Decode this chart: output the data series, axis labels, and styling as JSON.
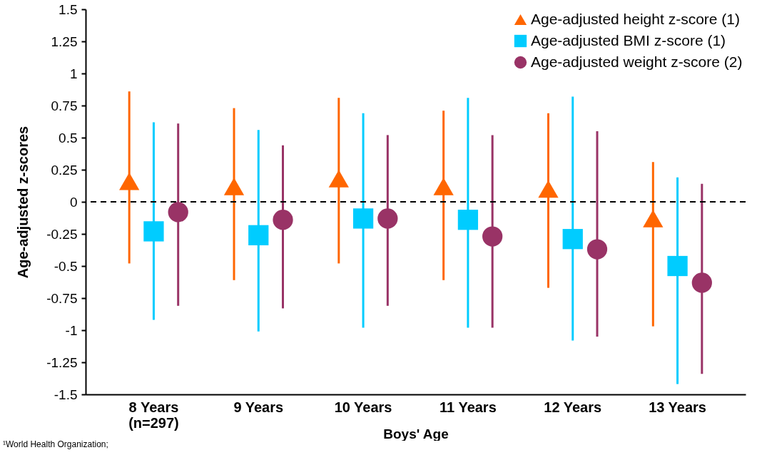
{
  "chart_data": {
    "type": "scatter",
    "xlabel": "Boys' Age",
    "ylabel": "Age-adjusted z-scores",
    "categories": [
      "8 Years\n(n=297)",
      "9 Years",
      "10 Years",
      "11 Years",
      "12 Years",
      "13 Years"
    ],
    "ylim": [
      -1.5,
      1.5
    ],
    "yticks": [
      -1.5,
      -1.25,
      -1,
      -0.75,
      -0.5,
      -0.25,
      0,
      0.25,
      0.5,
      0.75,
      1,
      1.25,
      1.5
    ],
    "grid": false,
    "legend": "top right",
    "series": [
      {
        "name": "Age-adjusted height z-score (1)",
        "color": "#ff6600",
        "marker": "triangle",
        "values": [
          0.16,
          0.12,
          0.18,
          0.12,
          0.1,
          -0.13
        ],
        "errors": [
          [
            -0.48,
            0.86
          ],
          [
            -0.61,
            0.73
          ],
          [
            -0.48,
            0.81
          ],
          [
            -0.61,
            0.71
          ],
          [
            -0.67,
            0.69
          ],
          [
            -0.97,
            0.31
          ]
        ]
      },
      {
        "name": "Age-adjusted BMI z-score (1)",
        "color": "#00ccff",
        "marker": "square",
        "values": [
          -0.23,
          -0.26,
          -0.13,
          -0.14,
          -0.29,
          -0.5
        ],
        "errors": [
          [
            -0.92,
            0.62
          ],
          [
            -1.01,
            0.56
          ],
          [
            -0.98,
            0.69
          ],
          [
            -0.98,
            0.81
          ],
          [
            -1.08,
            0.82
          ],
          [
            -1.42,
            0.19
          ]
        ]
      },
      {
        "name": "Age-adjusted weight z-score (2)",
        "color": "#993366",
        "marker": "circle",
        "values": [
          -0.08,
          -0.14,
          -0.13,
          -0.27,
          -0.37,
          -0.63
        ],
        "errors": [
          [
            -0.81,
            0.61
          ],
          [
            -0.83,
            0.44
          ],
          [
            -0.81,
            0.52
          ],
          [
            -0.98,
            0.52
          ],
          [
            -1.05,
            0.55
          ],
          [
            -1.34,
            0.14
          ]
        ]
      }
    ],
    "ref_lines": [
      {
        "axis": "y",
        "value": 0,
        "color": "#000000",
        "line_style": "dashed"
      }
    ],
    "annotations": [
      "¹World Health Organization;"
    ]
  }
}
